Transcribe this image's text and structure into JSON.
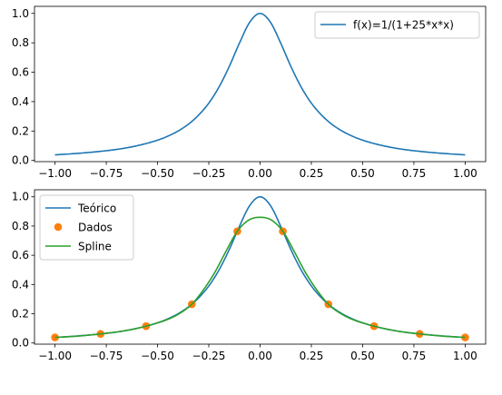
{
  "chart_data": [
    {
      "type": "line",
      "title": "",
      "xlabel": "",
      "ylabel": "",
      "xlim": [
        -1.1,
        1.1
      ],
      "ylim": [
        -0.008,
        1.048
      ],
      "xticks": [
        -1.0,
        -0.75,
        -0.5,
        -0.25,
        0.0,
        0.25,
        0.5,
        0.75,
        1.0
      ],
      "xtick_labels": [
        "−1.00",
        "−0.75",
        "−0.50",
        "−0.25",
        "0.00",
        "0.25",
        "0.50",
        "0.75",
        "1.00"
      ],
      "yticks": [
        0.0,
        0.2,
        0.4,
        0.6,
        0.8,
        1.0
      ],
      "ytick_labels": [
        "0.0",
        "0.2",
        "0.4",
        "0.6",
        "0.8",
        "1.0"
      ],
      "grid": false,
      "legend": {
        "position": "upper-right"
      },
      "series": [
        {
          "name": "f(x)=1/(1+25*x*x)",
          "style": "line",
          "color": "#1f77b4",
          "x": [
            -1.0,
            -0.9,
            -0.8,
            -0.7,
            -0.6,
            -0.5,
            -0.45,
            -0.4,
            -0.35,
            -0.3,
            -0.25,
            -0.2,
            -0.15,
            -0.1,
            -0.05,
            0.0,
            0.05,
            0.1,
            0.15,
            0.2,
            0.25,
            0.3,
            0.35,
            0.4,
            0.45,
            0.5,
            0.6,
            0.7,
            0.8,
            0.9,
            1.0
          ],
          "y": [
            0.038,
            0.047,
            0.059,
            0.075,
            0.1,
            0.138,
            0.165,
            0.2,
            0.246,
            0.308,
            0.39,
            0.5,
            0.64,
            0.8,
            0.941,
            1.0,
            0.941,
            0.8,
            0.64,
            0.5,
            0.39,
            0.308,
            0.246,
            0.2,
            0.165,
            0.138,
            0.1,
            0.075,
            0.059,
            0.047,
            0.038
          ]
        }
      ]
    },
    {
      "type": "line",
      "title": "",
      "xlabel": "",
      "ylabel": "",
      "xlim": [
        -1.1,
        1.1
      ],
      "ylim": [
        -0.008,
        1.048
      ],
      "xticks": [
        -1.0,
        -0.75,
        -0.5,
        -0.25,
        0.0,
        0.25,
        0.5,
        0.75,
        1.0
      ],
      "xtick_labels": [
        "−1.00",
        "−0.75",
        "−0.50",
        "−0.25",
        "0.00",
        "0.25",
        "0.50",
        "0.75",
        "1.00"
      ],
      "yticks": [
        0.0,
        0.2,
        0.4,
        0.6,
        0.8,
        1.0
      ],
      "ytick_labels": [
        "0.0",
        "0.2",
        "0.4",
        "0.6",
        "0.8",
        "1.0"
      ],
      "grid": false,
      "legend": {
        "position": "upper-left"
      },
      "series": [
        {
          "name": "Teórico",
          "style": "line",
          "color": "#1f77b4",
          "x": [
            -1.0,
            -0.9,
            -0.8,
            -0.7,
            -0.6,
            -0.5,
            -0.45,
            -0.4,
            -0.35,
            -0.3,
            -0.25,
            -0.2,
            -0.15,
            -0.1,
            -0.05,
            0.0,
            0.05,
            0.1,
            0.15,
            0.2,
            0.25,
            0.3,
            0.35,
            0.4,
            0.45,
            0.5,
            0.6,
            0.7,
            0.8,
            0.9,
            1.0
          ],
          "y": [
            0.038,
            0.047,
            0.059,
            0.075,
            0.1,
            0.138,
            0.165,
            0.2,
            0.246,
            0.308,
            0.39,
            0.5,
            0.64,
            0.8,
            0.941,
            1.0,
            0.941,
            0.8,
            0.64,
            0.5,
            0.39,
            0.308,
            0.246,
            0.2,
            0.165,
            0.138,
            0.1,
            0.075,
            0.059,
            0.047,
            0.038
          ]
        },
        {
          "name": "Dados",
          "style": "markers",
          "color": "#ff7f0e",
          "x": [
            -1.0,
            -0.778,
            -0.556,
            -0.333,
            -0.111,
            0.111,
            0.333,
            0.556,
            0.778,
            1.0
          ],
          "y": [
            0.038,
            0.062,
            0.115,
            0.265,
            0.764,
            0.764,
            0.265,
            0.115,
            0.062,
            0.038
          ]
        },
        {
          "name": "Spline",
          "style": "line",
          "color": "#2ca02c",
          "x": [
            -1.0,
            -0.889,
            -0.778,
            -0.667,
            -0.556,
            -0.444,
            -0.389,
            -0.333,
            -0.278,
            -0.222,
            -0.167,
            -0.111,
            -0.056,
            0.0,
            0.056,
            0.111,
            0.167,
            0.222,
            0.278,
            0.333,
            0.389,
            0.444,
            0.556,
            0.667,
            0.778,
            0.889,
            1.0
          ],
          "y": [
            0.038,
            0.047,
            0.062,
            0.082,
            0.115,
            0.165,
            0.205,
            0.265,
            0.36,
            0.48,
            0.625,
            0.764,
            0.84,
            0.86,
            0.84,
            0.764,
            0.625,
            0.48,
            0.36,
            0.265,
            0.205,
            0.165,
            0.115,
            0.082,
            0.062,
            0.047,
            0.038
          ]
        }
      ]
    }
  ]
}
